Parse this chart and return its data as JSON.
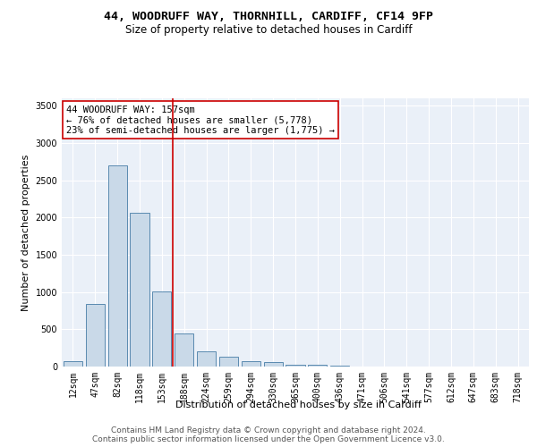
{
  "title1": "44, WOODRUFF WAY, THORNHILL, CARDIFF, CF14 9FP",
  "title2": "Size of property relative to detached houses in Cardiff",
  "xlabel": "Distribution of detached houses by size in Cardiff",
  "ylabel": "Number of detached properties",
  "categories": [
    "12sqm",
    "47sqm",
    "82sqm",
    "118sqm",
    "153sqm",
    "188sqm",
    "224sqm",
    "259sqm",
    "294sqm",
    "330sqm",
    "365sqm",
    "400sqm",
    "436sqm",
    "471sqm",
    "506sqm",
    "541sqm",
    "577sqm",
    "612sqm",
    "647sqm",
    "683sqm",
    "718sqm"
  ],
  "values": [
    70,
    840,
    2700,
    2060,
    1010,
    450,
    200,
    130,
    75,
    60,
    30,
    30,
    10,
    5,
    5,
    3,
    2,
    1,
    1,
    0,
    0
  ],
  "bar_color": "#c9d9e8",
  "bar_edge_color": "#5a8ab0",
  "vline_color": "#cc0000",
  "annotation_text": "44 WOODRUFF WAY: 157sqm\n← 76% of detached houses are smaller (5,778)\n23% of semi-detached houses are larger (1,775) →",
  "annotation_box_color": "#ffffff",
  "annotation_box_edge_color": "#cc0000",
  "ylim": [
    0,
    3600
  ],
  "yticks": [
    0,
    500,
    1000,
    1500,
    2000,
    2500,
    3000,
    3500
  ],
  "footer1": "Contains HM Land Registry data © Crown copyright and database right 2024.",
  "footer2": "Contains public sector information licensed under the Open Government Licence v3.0.",
  "plot_bg_color": "#eaf0f8",
  "title1_fontsize": 9.5,
  "title2_fontsize": 8.5,
  "annotation_fontsize": 7.5,
  "axis_label_fontsize": 8,
  "tick_fontsize": 7,
  "footer_fontsize": 6.5,
  "vline_pos": 4.5
}
